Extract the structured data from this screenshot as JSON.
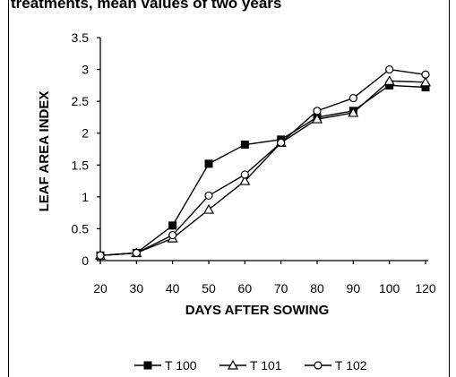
{
  "caption": "treatments, mean values of two years",
  "chart_data": {
    "type": "line",
    "xlabel": "DAYS AFTER SOWING",
    "ylabel": "LEAF AREA INDEX",
    "x_ticks": [
      "20",
      "30",
      "40",
      "50",
      "60",
      "70",
      "80",
      "90",
      "100",
      "120"
    ],
    "y_ticks": [
      "0",
      "0.5",
      "1",
      "1.5",
      "2",
      "2.5",
      "3",
      "3.5"
    ],
    "ylim": [
      0,
      3.5
    ],
    "grid": false,
    "legend_position": "bottom",
    "series": [
      {
        "name": "T 100",
        "marker": "square-filled",
        "values": [
          0.08,
          0.12,
          0.55,
          1.52,
          1.82,
          1.9,
          2.25,
          2.35,
          2.75,
          2.72
        ]
      },
      {
        "name": "T 101",
        "marker": "triangle-open",
        "values": [
          0.08,
          0.12,
          0.35,
          0.8,
          1.25,
          1.85,
          2.22,
          2.32,
          2.82,
          2.8
        ]
      },
      {
        "name": "T 102",
        "marker": "circle-open",
        "values": [
          0.08,
          0.12,
          0.4,
          1.02,
          1.35,
          1.85,
          2.35,
          2.55,
          3.0,
          2.92
        ]
      }
    ]
  }
}
